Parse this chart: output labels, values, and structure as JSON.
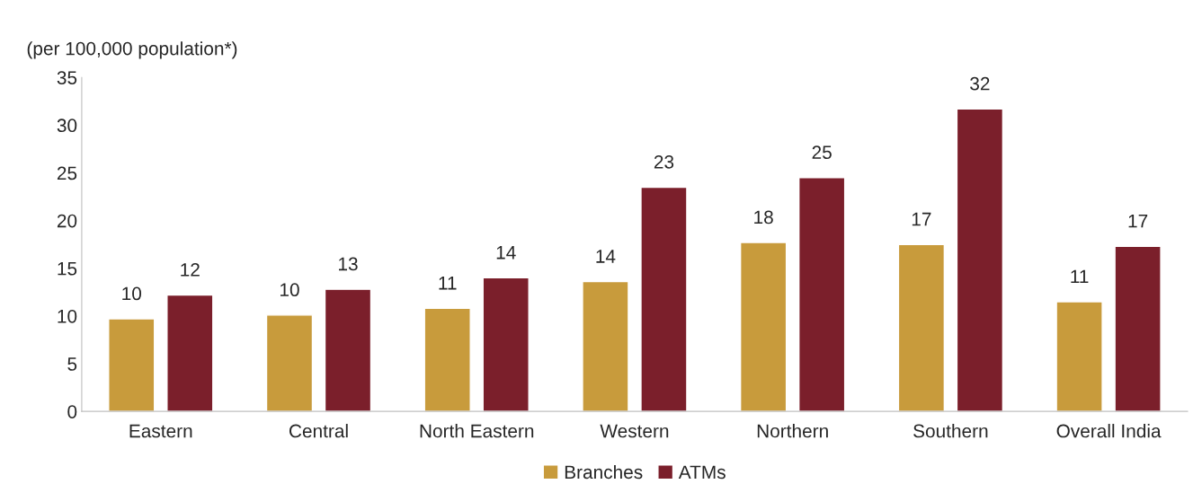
{
  "chart_data": {
    "type": "bar",
    "title": "(per 100,000 population*)",
    "categories": [
      "Eastern",
      "Central",
      "North Eastern",
      "Western",
      "Northern",
      "Southern",
      "Overall India"
    ],
    "series": [
      {
        "name": "Branches",
        "color": "#c89b3c",
        "values": [
          9.7,
          10.1,
          10.8,
          13.6,
          17.7,
          17.5,
          11.5
        ],
        "value_labels": [
          "10",
          "10",
          "11",
          "14",
          "18",
          "17",
          "11"
        ]
      },
      {
        "name": "ATMs",
        "color": "#7b1f2b",
        "values": [
          12.2,
          12.8,
          14.0,
          23.5,
          24.5,
          31.7,
          17.3
        ],
        "value_labels": [
          "12",
          "13",
          "14",
          "23",
          "25",
          "32",
          "17"
        ]
      }
    ],
    "ylim": [
      0,
      35
    ],
    "yticks": [
      0,
      5,
      10,
      15,
      20,
      25,
      30,
      35
    ],
    "grid": false,
    "legend": "bottom"
  }
}
